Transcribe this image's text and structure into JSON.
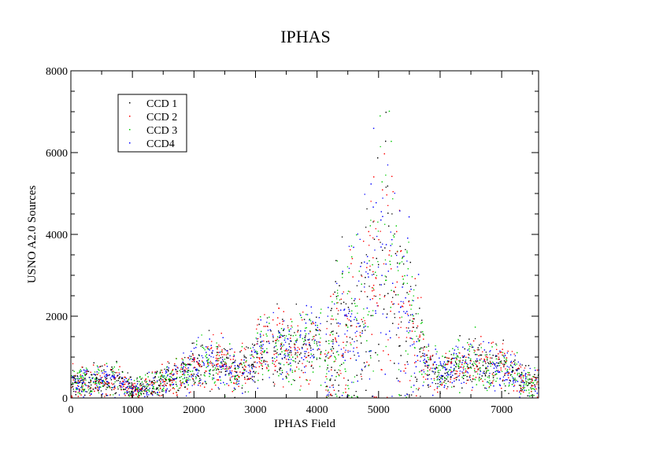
{
  "chart_data": {
    "type": "scatter",
    "title": "IPHAS",
    "xlabel": "IPHAS Field",
    "ylabel": "USNO A2.0 Sources",
    "xlim": [
      0,
      7600
    ],
    "ylim": [
      0,
      8000
    ],
    "xticks": [
      "0",
      "1000",
      "2000",
      "3000",
      "4000",
      "5000",
      "6000",
      "7000"
    ],
    "yticks": [
      "0",
      "2000",
      "4000",
      "6000",
      "8000"
    ],
    "grid": false,
    "legend_position": "top-left",
    "series": [
      {
        "name": "CCD 1",
        "color": "#000000"
      },
      {
        "name": "CCD 2",
        "color": "#ff0000"
      },
      {
        "name": "CCD 3",
        "color": "#00cc00"
      },
      {
        "name": "CCD4",
        "color": "#0000ff"
      }
    ],
    "trend": [
      {
        "x": 0,
        "y": 420
      },
      {
        "x": 300,
        "y": 380
      },
      {
        "x": 700,
        "y": 480
      },
      {
        "x": 1000,
        "y": 220
      },
      {
        "x": 1200,
        "y": 260
      },
      {
        "x": 1500,
        "y": 420
      },
      {
        "x": 1800,
        "y": 560
      },
      {
        "x": 2000,
        "y": 750
      },
      {
        "x": 2200,
        "y": 880
      },
      {
        "x": 2500,
        "y": 800
      },
      {
        "x": 2700,
        "y": 620
      },
      {
        "x": 3000,
        "y": 1100
      },
      {
        "x": 3300,
        "y": 1300
      },
      {
        "x": 3600,
        "y": 1150
      },
      {
        "x": 3850,
        "y": 1350
      },
      {
        "x": 4050,
        "y": 1500
      },
      {
        "x": 4100,
        "y": 600
      },
      {
        "x": 4300,
        "y": 1500
      },
      {
        "x": 4600,
        "y": 2100
      },
      {
        "x": 4850,
        "y": 2300
      },
      {
        "x": 5050,
        "y": 3400
      },
      {
        "x": 5200,
        "y": 2900
      },
      {
        "x": 5400,
        "y": 2300
      },
      {
        "x": 5600,
        "y": 1300
      },
      {
        "x": 5800,
        "y": 800
      },
      {
        "x": 6000,
        "y": 600
      },
      {
        "x": 6200,
        "y": 700
      },
      {
        "x": 6500,
        "y": 900
      },
      {
        "x": 6800,
        "y": 800
      },
      {
        "x": 7100,
        "y": 700
      },
      {
        "x": 7400,
        "y": 420
      },
      {
        "x": 7600,
        "y": 380
      }
    ]
  }
}
